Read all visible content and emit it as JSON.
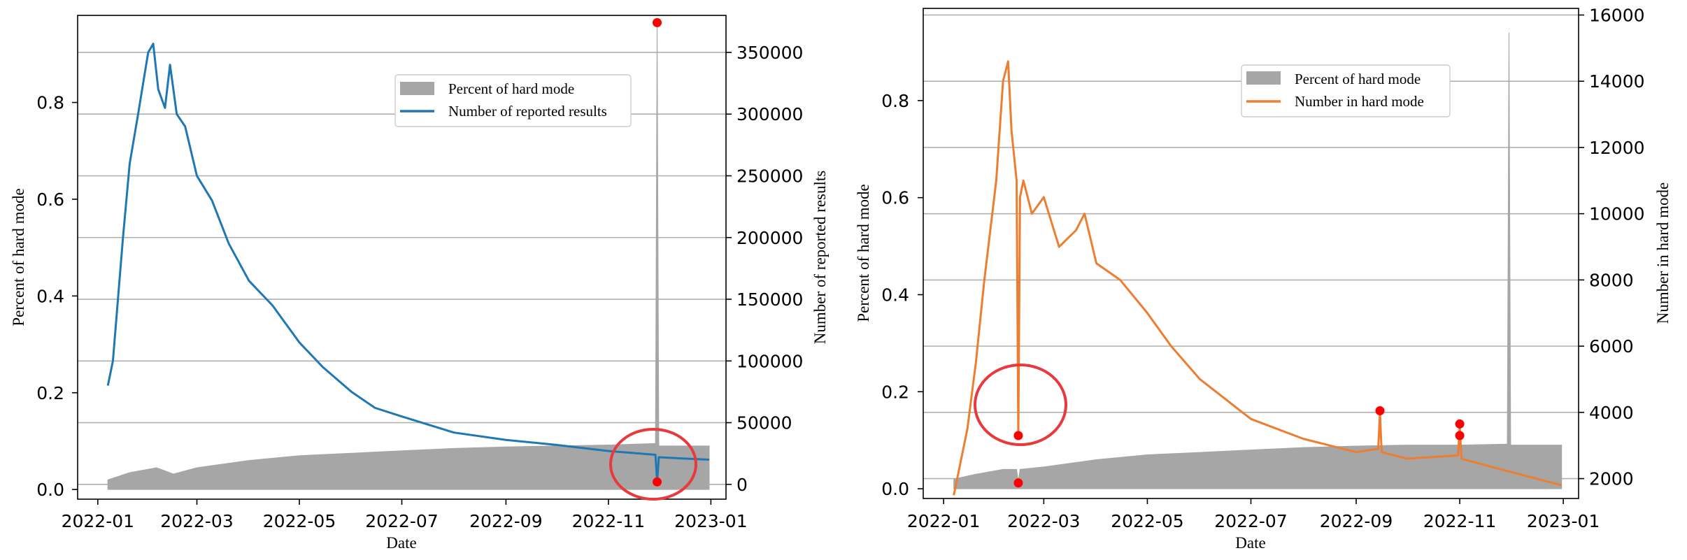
{
  "figure": {
    "title": ""
  },
  "chart_data": [
    {
      "type": "area",
      "title": "",
      "xlabel": "Date",
      "ylabel_left": "Percent of hard mode",
      "ylabel_right": "Number of reported results",
      "x_ticks": [
        "2022-01",
        "2022-03",
        "2022-05",
        "2022-07",
        "2022-09",
        "2022-11",
        "2023-01"
      ],
      "y_left_ticks": [
        "0.0",
        "0.2",
        "0.4",
        "0.6",
        "0.8"
      ],
      "y_right_ticks": [
        "0",
        "50000",
        "100000",
        "150000",
        "200000",
        "250000",
        "300000",
        "350000"
      ],
      "ylim_left": [
        -0.02,
        0.98
      ],
      "ylim_right": [
        -12000,
        380000
      ],
      "xlim": [
        "2021-12-20",
        "2023-01-10"
      ],
      "grid": "horizontal",
      "legend_position": "top-right",
      "legend": [
        "Percent of hard mode",
        "Number of reported results"
      ],
      "colors": {
        "hard_mode_area": "#a6a6a6",
        "line": "#1f77b4",
        "marker": "#ff0000",
        "highlight": "#e8393d"
      },
      "series": [
        {
          "name": "Percent of hard mode",
          "axis": "left",
          "style": "area",
          "x": [
            "2022-01-07",
            "2022-01-20",
            "2022-02-05",
            "2022-02-15",
            "2022-03-01",
            "2022-04-01",
            "2022-05-01",
            "2022-06-01",
            "2022-07-01",
            "2022-08-01",
            "2022-09-01",
            "2022-10-01",
            "2022-11-01",
            "2022-11-29",
            "2022-11-30",
            "2022-12-01",
            "2022-12-31"
          ],
          "values": [
            0.02,
            0.035,
            0.045,
            0.032,
            0.045,
            0.06,
            0.07,
            0.075,
            0.08,
            0.085,
            0.088,
            0.09,
            0.092,
            0.095,
            0.97,
            0.09,
            0.09
          ]
        },
        {
          "name": "Number of reported results",
          "axis": "right",
          "style": "line",
          "x": [
            "2022-01-07",
            "2022-01-10",
            "2022-01-13",
            "2022-01-16",
            "2022-01-20",
            "2022-01-25",
            "2022-01-31",
            "2022-02-03",
            "2022-02-06",
            "2022-02-10",
            "2022-02-13",
            "2022-02-17",
            "2022-02-22",
            "2022-03-01",
            "2022-03-10",
            "2022-03-20",
            "2022-04-01",
            "2022-04-15",
            "2022-05-01",
            "2022-05-15",
            "2022-06-01",
            "2022-06-15",
            "2022-07-01",
            "2022-08-01",
            "2022-09-01",
            "2022-10-01",
            "2022-11-01",
            "2022-11-29",
            "2022-11-30",
            "2022-12-01",
            "2022-12-15",
            "2022-12-31"
          ],
          "values": [
            80000,
            100000,
            150000,
            200000,
            260000,
            300000,
            350000,
            357000,
            320000,
            305000,
            340000,
            300000,
            290000,
            250000,
            230000,
            195000,
            165000,
            145000,
            115000,
            95000,
            75000,
            62000,
            55000,
            42000,
            36000,
            32000,
            27000,
            24000,
            2000,
            22000,
            21000,
            20000
          ]
        }
      ],
      "highlight_points": [
        {
          "x": "2022-11-30",
          "axis": "left",
          "value": 0.965
        },
        {
          "x": "2022-11-30",
          "axis": "right",
          "value": 2000
        }
      ],
      "highlight_circle_at": {
        "x": "2022-11-30",
        "axis": "right",
        "value": 10000
      }
    },
    {
      "type": "area",
      "title": "",
      "xlabel": "Date",
      "ylabel_left": "Percent of hard mode",
      "ylabel_right": "Number in hard mode",
      "x_ticks": [
        "2022-01",
        "2022-03",
        "2022-05",
        "2022-07",
        "2022-09",
        "2022-11",
        "2023-01"
      ],
      "y_left_ticks": [
        "0.0",
        "0.2",
        "0.4",
        "0.6",
        "0.8"
      ],
      "y_right_ticks": [
        "2000",
        "4000",
        "6000",
        "8000",
        "10000",
        "12000",
        "14000",
        "16000"
      ],
      "ylim_left": [
        -0.02,
        0.99
      ],
      "ylim_right": [
        1400,
        16200
      ],
      "xlim": [
        "2021-12-20",
        "2023-01-10"
      ],
      "grid": "horizontal",
      "legend_position": "top-right",
      "legend": [
        "Percent of hard mode",
        "Number in hard mode"
      ],
      "colors": {
        "hard_mode_area": "#a6a6a6",
        "line": "#ed7d31",
        "marker": "#ff0000",
        "highlight": "#e8393d"
      },
      "series": [
        {
          "name": "Percent of hard mode",
          "axis": "left",
          "style": "area",
          "x": [
            "2022-01-07",
            "2022-01-20",
            "2022-02-05",
            "2022-02-13",
            "2022-02-14",
            "2022-02-15",
            "2022-03-01",
            "2022-04-01",
            "2022-05-01",
            "2022-06-01",
            "2022-07-01",
            "2022-08-01",
            "2022-09-01",
            "2022-10-01",
            "2022-11-01",
            "2022-11-29",
            "2022-11-30",
            "2022-12-01",
            "2022-12-31"
          ],
          "values": [
            0.02,
            0.03,
            0.04,
            0.04,
            0.015,
            0.04,
            0.045,
            0.06,
            0.07,
            0.075,
            0.08,
            0.085,
            0.088,
            0.09,
            0.09,
            0.092,
            0.94,
            0.09,
            0.09
          ]
        },
        {
          "name": "Number in hard mode",
          "axis": "right",
          "style": "line",
          "x": [
            "2022-01-07",
            "2022-01-15",
            "2022-01-20",
            "2022-01-25",
            "2022-02-01",
            "2022-02-05",
            "2022-02-08",
            "2022-02-10",
            "2022-02-13",
            "2022-02-14",
            "2022-02-15",
            "2022-02-17",
            "2022-02-22",
            "2022-03-01",
            "2022-03-10",
            "2022-03-20",
            "2022-03-25",
            "2022-04-01",
            "2022-04-15",
            "2022-05-01",
            "2022-05-15",
            "2022-06-01",
            "2022-07-01",
            "2022-08-01",
            "2022-09-01",
            "2022-09-14",
            "2022-09-15",
            "2022-09-16",
            "2022-10-01",
            "2022-10-31",
            "2022-11-01",
            "2022-11-02",
            "2022-12-01",
            "2022-12-31"
          ],
          "values": [
            1500,
            3500,
            5500,
            8000,
            11000,
            14000,
            14600,
            12500,
            11000,
            3300,
            10500,
            11000,
            10000,
            10500,
            9000,
            9500,
            10000,
            8500,
            8000,
            7000,
            6000,
            5000,
            3800,
            3200,
            2800,
            2900,
            4000,
            2800,
            2600,
            2700,
            3600,
            2600,
            2200,
            1800
          ]
        }
      ],
      "highlight_points": [
        {
          "x": "2022-02-14",
          "axis": "right",
          "value": 3300
        },
        {
          "x": "2022-02-14",
          "axis": "left",
          "value": 0.012
        },
        {
          "x": "2022-09-15",
          "axis": "right",
          "value": 4050
        },
        {
          "x": "2022-11-01",
          "axis": "right",
          "value": 3650
        },
        {
          "x": "2022-11-01",
          "axis": "right",
          "value": 3300
        }
      ],
      "highlight_circle_at": {
        "x": "2022-02-14",
        "axis": "right",
        "value": 3500
      }
    }
  ]
}
